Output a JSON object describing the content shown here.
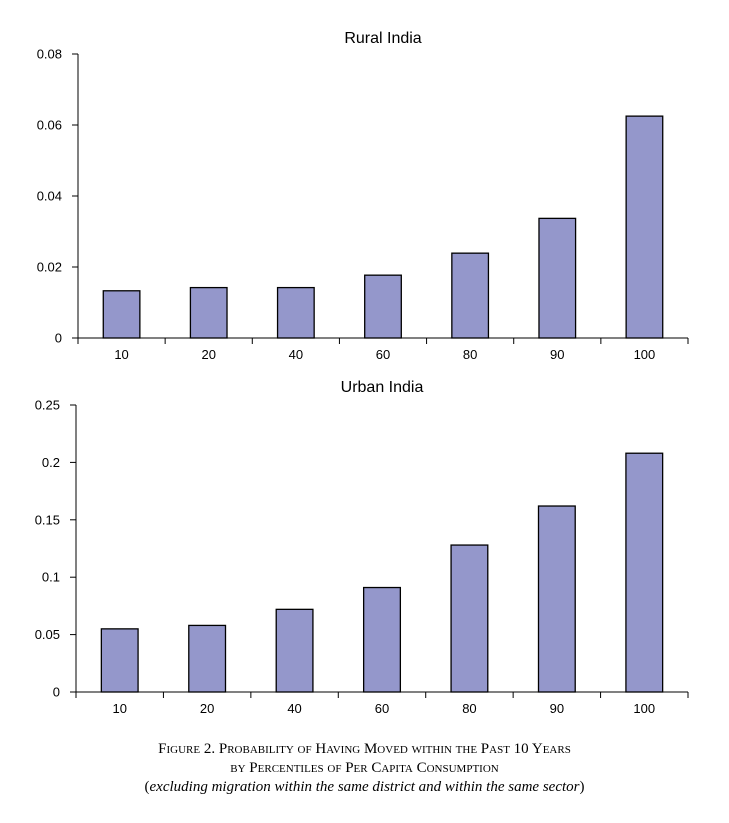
{
  "chart_data": [
    {
      "type": "bar",
      "title": "Rural India",
      "categories": [
        "10",
        "20",
        "40",
        "60",
        "80",
        "90",
        "100"
      ],
      "values": [
        0.0133,
        0.0142,
        0.0142,
        0.0177,
        0.0239,
        0.0337,
        0.0625
      ],
      "ylim": [
        0,
        0.08
      ],
      "yticks": [
        0,
        0.02,
        0.04,
        0.06,
        0.08
      ],
      "ytick_labels": [
        "0",
        "0.02",
        "0.04",
        "0.06",
        "0.08"
      ],
      "xlabel": "",
      "ylabel": "",
      "bar_color": "#9497cb",
      "grid": false
    },
    {
      "type": "bar",
      "title": "Urban India",
      "categories": [
        "10",
        "20",
        "40",
        "60",
        "80",
        "90",
        "100"
      ],
      "values": [
        0.055,
        0.058,
        0.072,
        0.091,
        0.128,
        0.162,
        0.208
      ],
      "ylim": [
        0,
        0.25
      ],
      "yticks": [
        0,
        0.05,
        0.1,
        0.15,
        0.2,
        0.25
      ],
      "ytick_labels": [
        "0",
        "0.05",
        "0.1",
        "0.15",
        "0.2",
        "0.25"
      ],
      "xlabel": "",
      "ylabel": "",
      "bar_color": "#9497cb",
      "grid": false
    }
  ],
  "caption": {
    "line1": "Figure 2. Probability of Having Moved within the Past 10 Years",
    "line2": "by Percentiles of Per Capita Consumption",
    "line3_open": "(",
    "line3_text": "excluding migration within the same district and within the same sector",
    "line3_close": ")"
  }
}
